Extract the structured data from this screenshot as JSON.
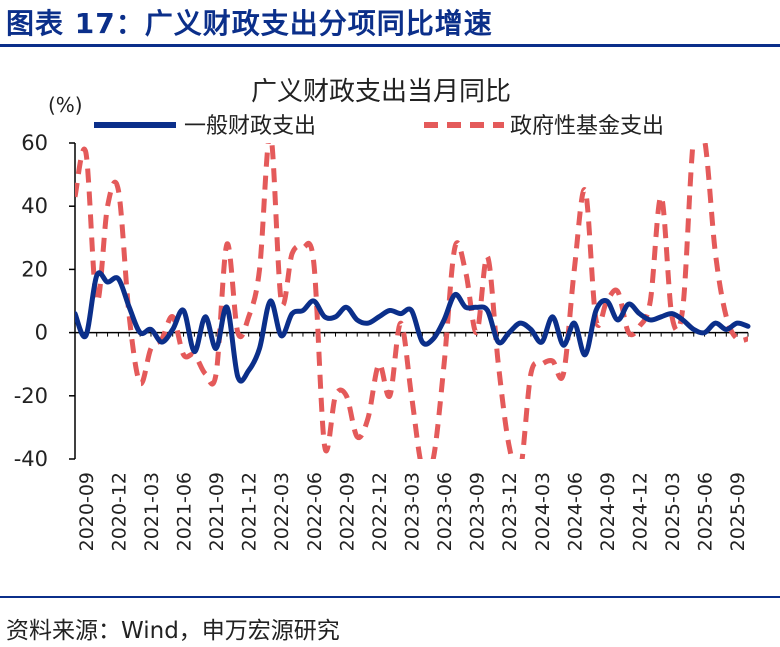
{
  "figure": {
    "title": "图表 17：广义财政支出分项同比增速",
    "source": "资料来源：Wind，申万宏源研究"
  },
  "chart_data": {
    "type": "line",
    "title": "广义财政支出当月同比",
    "unit": "(%)",
    "ylim": [
      -40,
      60
    ],
    "yticks": [
      60,
      40,
      20,
      0,
      -20,
      -40
    ],
    "xticks": [
      "2020-09",
      "2020-12",
      "2021-03",
      "2021-06",
      "2021-09",
      "2021-12",
      "2022-03",
      "2022-06",
      "2022-09",
      "2022-12",
      "2023-03",
      "2023-06",
      "2023-09",
      "2023-12",
      "2024-03",
      "2024-06",
      "2024-09",
      "2024-12",
      "2025-03",
      "2025-06",
      "2025-09"
    ],
    "x": [
      "2020-08",
      "2020-09",
      "2020-10",
      "2020-11",
      "2020-12",
      "2021-01",
      "2021-02",
      "2021-03",
      "2021-04",
      "2021-05",
      "2021-06",
      "2021-07",
      "2021-08",
      "2021-09",
      "2021-10",
      "2021-11",
      "2021-12",
      "2022-01",
      "2022-02",
      "2022-03",
      "2022-04",
      "2022-05",
      "2022-06",
      "2022-07",
      "2022-08",
      "2022-09",
      "2022-10",
      "2022-11",
      "2022-12",
      "2023-01",
      "2023-02",
      "2023-03",
      "2023-04",
      "2023-05",
      "2023-06",
      "2023-07",
      "2023-08",
      "2023-09",
      "2023-10",
      "2023-11",
      "2023-12",
      "2024-01",
      "2024-02",
      "2024-03",
      "2024-04",
      "2024-05",
      "2024-06",
      "2024-07",
      "2024-08",
      "2024-09",
      "2024-10",
      "2024-11",
      "2024-12",
      "2025-01",
      "2025-02",
      "2025-03",
      "2025-04",
      "2025-05",
      "2025-06",
      "2025-07",
      "2025-08",
      "2025-09",
      "2025-10"
    ],
    "series": [
      {
        "name": "一般财政支出",
        "color": "#0b2f8a",
        "style": "solid",
        "values": [
          6,
          -1,
          18,
          16,
          17,
          8,
          0,
          1,
          -3,
          1,
          7,
          -6,
          5,
          -5,
          8,
          -14,
          -12,
          -5,
          10,
          -1,
          6,
          7,
          10,
          5,
          5,
          8,
          4,
          3,
          5,
          7,
          6,
          7,
          -3,
          -2,
          4,
          12,
          8,
          8,
          7,
          -3,
          0,
          3,
          1,
          -3,
          5,
          -4,
          3,
          -7,
          7,
          10,
          4,
          9,
          6,
          4,
          5,
          6,
          4,
          1,
          0,
          3,
          1,
          3,
          2
        ]
      },
      {
        "name": "政府性基金支出",
        "color": "#e45a5a",
        "style": "dashed",
        "values": [
          43,
          57,
          10,
          40,
          45,
          5,
          -16,
          -5,
          -2,
          5,
          -7,
          -7,
          -13,
          -13,
          28,
          0,
          5,
          20,
          63,
          10,
          25,
          27,
          22,
          -36,
          -20,
          -20,
          -33,
          -27,
          -10,
          -20,
          3,
          -20,
          -43,
          -40,
          -10,
          27,
          19,
          0,
          24,
          -10,
          -36,
          -44,
          -13,
          -10,
          -9,
          -13,
          20,
          45,
          4,
          10,
          13,
          0,
          2,
          10,
          43,
          5,
          8,
          62,
          61,
          25,
          5,
          -2,
          -2
        ]
      }
    ]
  }
}
